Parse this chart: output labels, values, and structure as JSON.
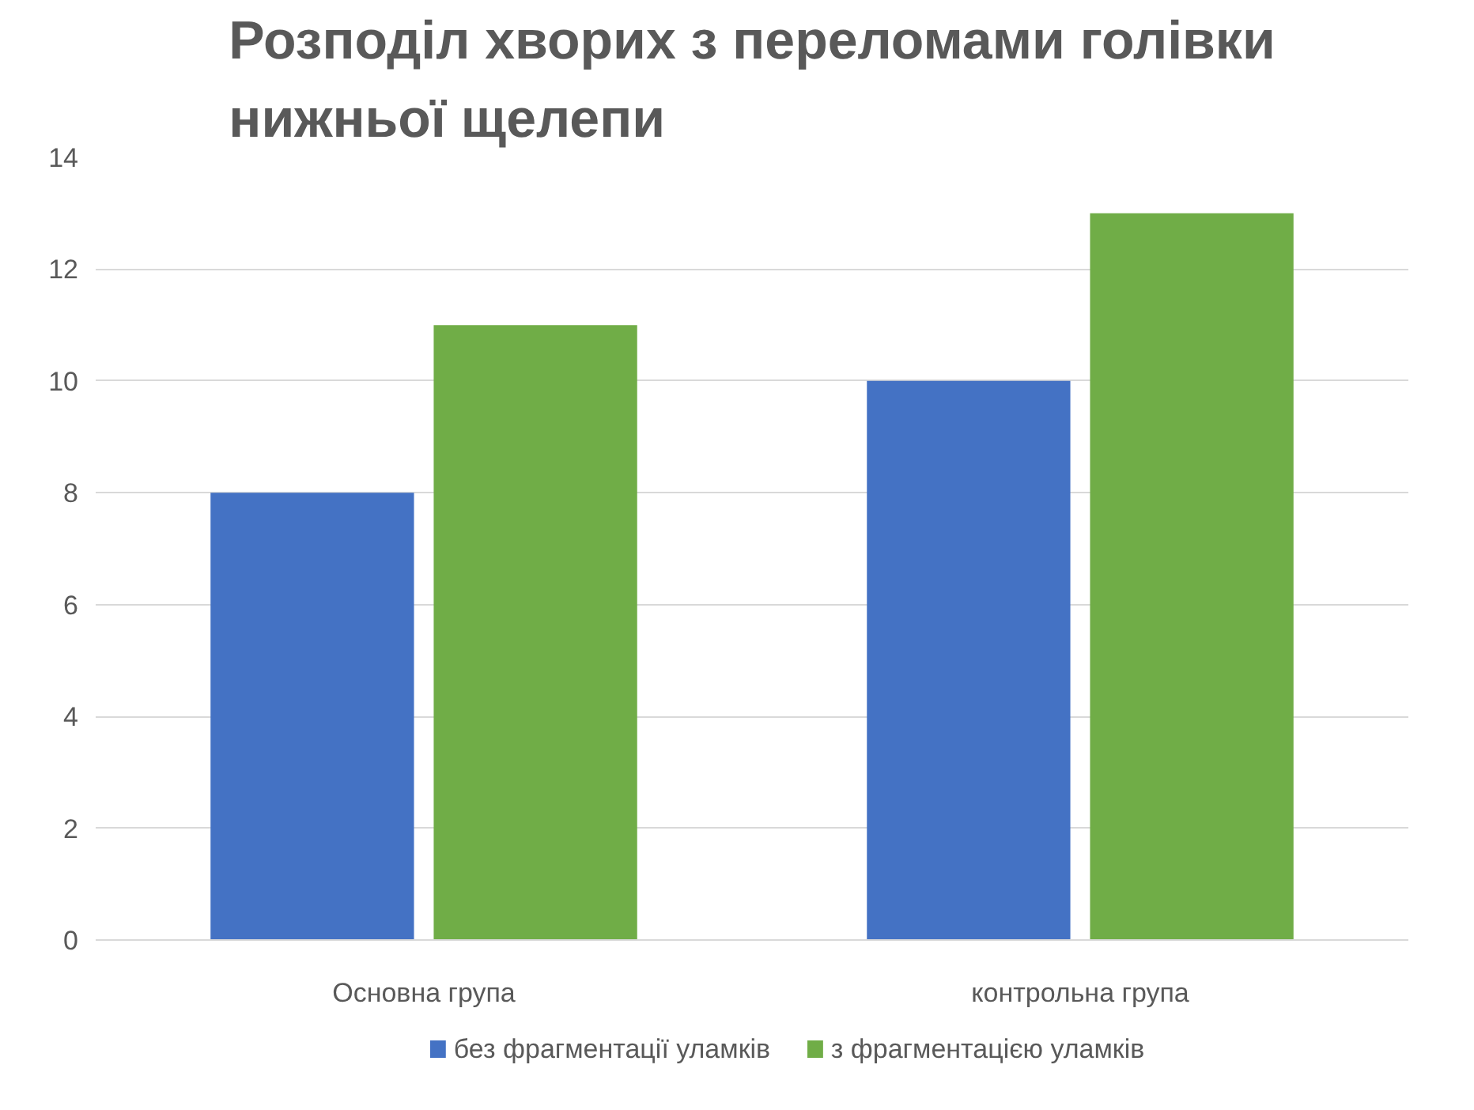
{
  "chart_data": {
    "type": "bar",
    "title": "Розподіл хворих з переломами голівки нижньої щелепи",
    "categories": [
      "Основна група",
      "контрольна група"
    ],
    "series": [
      {
        "name": "без фрагментації уламків",
        "color": "#4472c4",
        "values": [
          8,
          10
        ]
      },
      {
        "name": "з фрагментацією уламків",
        "color": "#70ad47",
        "values": [
          11,
          13
        ]
      }
    ],
    "ylim": [
      0,
      14
    ],
    "yticks": [
      0,
      2,
      4,
      6,
      8,
      10,
      12,
      14
    ],
    "grid": "y",
    "legend": "bottom"
  }
}
